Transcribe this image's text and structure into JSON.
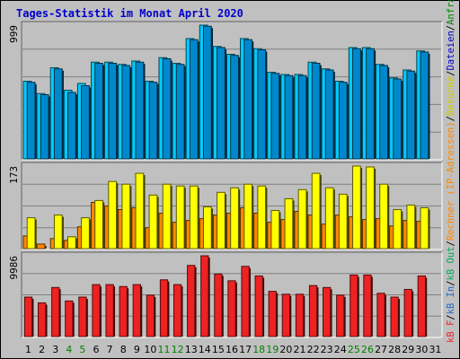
{
  "title": "Tages-Statistik im Monat April 2020",
  "chart_data": [
    {
      "type": "bar",
      "panel": "top",
      "ymax_label": "999",
      "categories": [
        "1",
        "2",
        "3",
        "4",
        "5",
        "6",
        "7",
        "8",
        "9",
        "10",
        "11",
        "12",
        "13",
        "14",
        "15",
        "16",
        "17",
        "18",
        "19",
        "20",
        "21",
        "22",
        "23",
        "24",
        "25",
        "26",
        "27",
        "28",
        "29",
        "30",
        "31"
      ],
      "category_colors": {
        "weekend": "#008000",
        "weekday": "#000000"
      },
      "weekend_days": [
        4,
        5,
        11,
        12,
        18,
        19,
        25,
        26
      ],
      "series": [
        {
          "name": "Anfragen",
          "color": "#00ccff",
          "values": [
            700,
            590,
            820,
            620,
            680,
            870,
            870,
            850,
            880,
            700,
            910,
            860,
            1080,
            1200,
            1010,
            940,
            1080,
            990,
            780,
            760,
            760,
            870,
            810,
            700,
            1000,
            1000,
            850,
            730,
            800,
            970,
            null
          ]
        },
        {
          "name": "Dateien",
          "color": "#0088cc",
          "values": [
            690,
            580,
            810,
            600,
            660,
            860,
            860,
            840,
            870,
            690,
            900,
            850,
            1070,
            1190,
            1000,
            930,
            1070,
            980,
            770,
            750,
            750,
            860,
            800,
            690,
            990,
            990,
            840,
            720,
            790,
            960,
            null
          ]
        }
      ]
    },
    {
      "type": "bar",
      "panel": "middle",
      "ymax_label": "173",
      "series": [
        {
          "name": "Rechner (IP-Adressen)",
          "color": "#ff8800",
          "values": [
            15,
            6,
            12,
            10,
            25,
            52,
            48,
            44,
            46,
            24,
            40,
            30,
            32,
            34,
            38,
            40,
            46,
            40,
            30,
            33,
            42,
            38,
            28,
            38,
            36,
            33,
            34,
            26,
            32,
            31,
            null
          ]
        },
        {
          "name": "Besuche",
          "color": "#ffff00",
          "values": [
            35,
            0,
            38,
            14,
            35,
            54,
            75,
            72,
            84,
            60,
            72,
            70,
            70,
            47,
            63,
            68,
            72,
            70,
            43,
            56,
            66,
            84,
            68,
            61,
            92,
            91,
            72,
            44,
            49,
            46,
            null
          ]
        }
      ]
    },
    {
      "type": "bar",
      "panel": "bottom",
      "ymax_label": "9986",
      "series": [
        {
          "name": "kB F",
          "color": "#ee2222",
          "values": [
            4200,
            3600,
            5200,
            3800,
            4200,
            5500,
            5500,
            5300,
            5500,
            4400,
            6000,
            5500,
            7500,
            8500,
            6600,
            5900,
            7400,
            6400,
            4800,
            4500,
            4500,
            5400,
            5200,
            4400,
            6500,
            6500,
            4600,
            4200,
            5000,
            6400,
            null
          ]
        }
      ]
    }
  ],
  "side_label": {
    "kbf": "kB F",
    "kbin": "kB In",
    "kbout": "kB Out",
    "rechner": "Rechner (IP-Adressen)",
    "besuche": "Besuche",
    "dateien": "Dateien",
    "anfragen": "Anfragen"
  }
}
